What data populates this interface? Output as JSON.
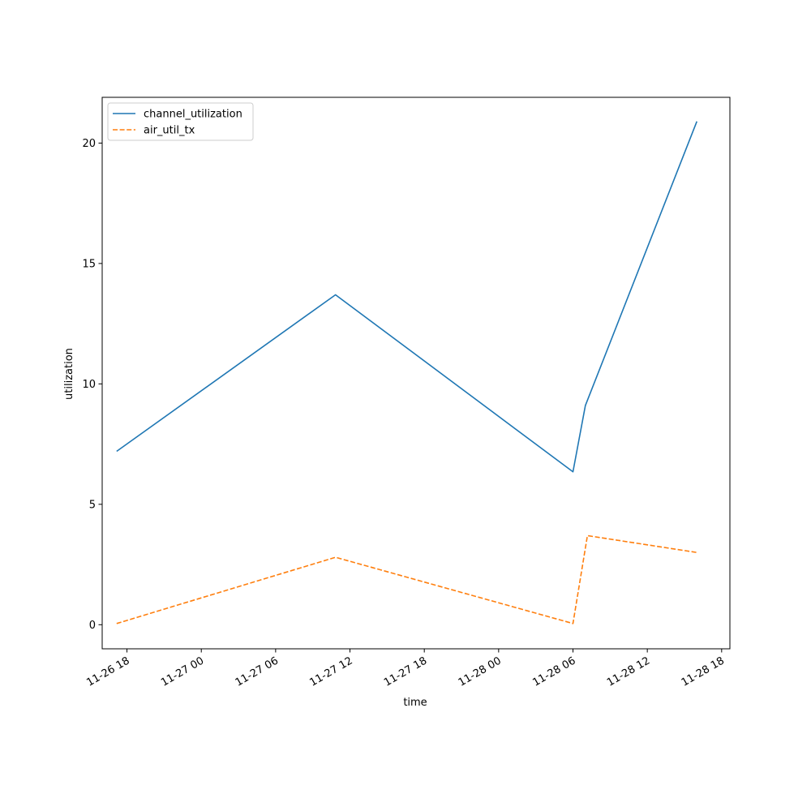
{
  "chart_data": {
    "type": "line",
    "title": "",
    "xlabel": "time",
    "ylabel": "utilization",
    "x_tick_labels": [
      "11-26 18",
      "11-27 00",
      "11-27 06",
      "11-27 12",
      "11-27 18",
      "11-28 00",
      "11-28 06",
      "11-28 12",
      "11-28 18"
    ],
    "x_ticks": [
      "2000-11-26T18:00",
      "2000-11-27T00:00",
      "2000-11-27T06:00",
      "2000-11-27T12:00",
      "2000-11-27T18:00",
      "2000-11-28T00:00",
      "2000-11-28T06:00",
      "2000-11-28T12:00",
      "2000-11-28T18:00"
    ],
    "xlim": [
      "2000-11-26T16:00",
      "2000-11-28T18:40"
    ],
    "y_ticks": [
      0,
      5,
      10,
      15,
      20
    ],
    "ylim": [
      -1.0,
      21.9
    ],
    "grid": false,
    "legend": "top-left",
    "series": [
      {
        "name": "channel_utilization",
        "color": "#1f77b4",
        "dash": "solid",
        "x": [
          "2000-11-26T17:10",
          "2000-11-27T10:50",
          "2000-11-28T06:00",
          "2000-11-28T07:00",
          "2000-11-28T16:00"
        ],
        "values": [
          7.2,
          13.7,
          6.35,
          9.1,
          20.9
        ]
      },
      {
        "name": "air_util_tx",
        "color": "#ff7f0e",
        "dash": "dashed",
        "x": [
          "2000-11-26T17:10",
          "2000-11-27T10:50",
          "2000-11-28T06:00",
          "2000-11-28T07:10",
          "2000-11-28T16:00"
        ],
        "values": [
          0.05,
          2.8,
          0.05,
          3.7,
          3.0
        ]
      }
    ]
  }
}
